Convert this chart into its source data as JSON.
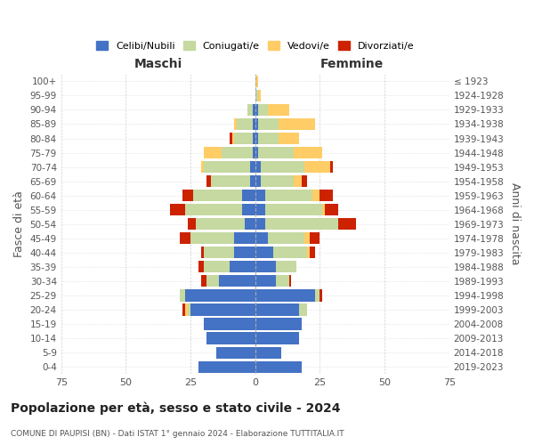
{
  "age_groups": [
    "0-4",
    "5-9",
    "10-14",
    "15-19",
    "20-24",
    "25-29",
    "30-34",
    "35-39",
    "40-44",
    "45-49",
    "50-54",
    "55-59",
    "60-64",
    "65-69",
    "70-74",
    "75-79",
    "80-84",
    "85-89",
    "90-94",
    "95-99",
    "100+"
  ],
  "birth_years": [
    "2019-2023",
    "2014-2018",
    "2009-2013",
    "2004-2008",
    "1999-2003",
    "1994-1998",
    "1989-1993",
    "1984-1988",
    "1979-1983",
    "1974-1978",
    "1969-1973",
    "1964-1968",
    "1959-1963",
    "1954-1958",
    "1949-1953",
    "1944-1948",
    "1939-1943",
    "1934-1938",
    "1929-1933",
    "1924-1928",
    "≤ 1923"
  ],
  "male": {
    "celibe": [
      22,
      15,
      19,
      20,
      25,
      27,
      14,
      10,
      8,
      8,
      4,
      5,
      5,
      2,
      2,
      1,
      1,
      1,
      1,
      0,
      0
    ],
    "coniugato": [
      0,
      0,
      0,
      0,
      1,
      2,
      5,
      10,
      12,
      17,
      19,
      22,
      19,
      15,
      18,
      12,
      7,
      6,
      2,
      0,
      0
    ],
    "vedovo": [
      0,
      0,
      0,
      0,
      1,
      0,
      0,
      0,
      0,
      0,
      0,
      0,
      0,
      0,
      1,
      7,
      1,
      1,
      0,
      0,
      0
    ],
    "divorziato": [
      0,
      0,
      0,
      0,
      1,
      0,
      2,
      2,
      1,
      4,
      3,
      6,
      4,
      2,
      0,
      0,
      1,
      0,
      0,
      0,
      0
    ]
  },
  "female": {
    "nubile": [
      18,
      10,
      17,
      18,
      17,
      23,
      8,
      8,
      7,
      5,
      4,
      4,
      4,
      2,
      2,
      1,
      1,
      1,
      1,
      0,
      0
    ],
    "coniugata": [
      0,
      0,
      0,
      0,
      3,
      2,
      5,
      8,
      13,
      14,
      28,
      22,
      18,
      13,
      17,
      14,
      8,
      8,
      4,
      1,
      0
    ],
    "vedova": [
      0,
      0,
      0,
      0,
      0,
      0,
      0,
      0,
      1,
      2,
      0,
      1,
      3,
      3,
      10,
      11,
      8,
      14,
      8,
      1,
      1
    ],
    "divorziata": [
      0,
      0,
      0,
      0,
      0,
      1,
      1,
      0,
      2,
      4,
      7,
      5,
      5,
      2,
      1,
      0,
      0,
      0,
      0,
      0,
      0
    ]
  },
  "colors": {
    "celibe": "#4472C4",
    "coniugato": "#C5D9A0",
    "vedovo": "#FFCC66",
    "divorziato": "#CC2200"
  },
  "xlim": 75,
  "title": "Popolazione per età, sesso e stato civile - 2024",
  "subtitle": "COMUNE DI PAUPISI (BN) - Dati ISTAT 1° gennaio 2024 - Elaborazione TUTTITALIA.IT",
  "xlabel_left": "Maschi",
  "xlabel_right": "Femmine",
  "ylabel_left": "Fasce di età",
  "ylabel_right": "Anni di nascita",
  "legend": [
    "Celibi/Nubili",
    "Coniugati/e",
    "Vedovi/e",
    "Divorziati/e"
  ],
  "background_color": "#FFFFFF",
  "grid_color": "#CCCCCC"
}
